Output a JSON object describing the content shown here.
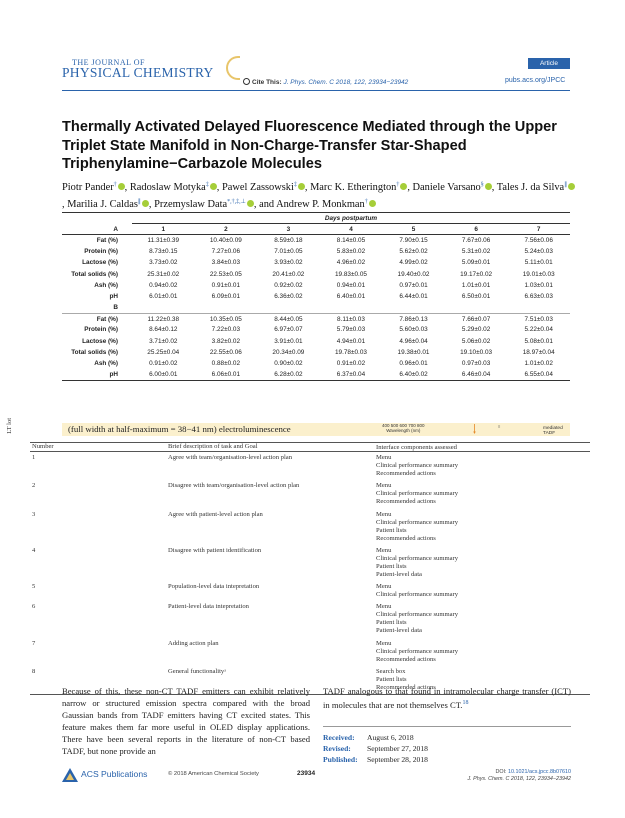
{
  "header": {
    "journal_line1": "THE JOURNAL OF",
    "journal_line2": "PHYSICAL CHEMISTRY",
    "cite_label": "Cite This:",
    "cite_ref": "J. Phys. Chem. C 2018, 122, 23934−23942",
    "article_tag": "Article",
    "pubs_link": "pubs.acs.org/JPCC"
  },
  "article": {
    "title": "Thermally Activated Delayed Fluorescence Mediated through the Upper Triplet State Manifold in Non-Charge-Transfer Star-Shaped Triphenylamine−Carbazole Molecules",
    "authors": [
      {
        "name": "Piotr Pander,",
        "sup": "†"
      },
      {
        "name": "Radoslaw Motyka,",
        "sup": "‡"
      },
      {
        "name": "Pawel Zassowski,",
        "sup": "‡"
      },
      {
        "name": "Marc K. Etherington,",
        "sup": "†"
      },
      {
        "name": "Daniele Varsano,",
        "sup": "§"
      },
      {
        "name": "Tales J. da Silva,",
        "sup": "∥"
      },
      {
        "name": "Marilia J. Caldas,",
        "sup": "∥"
      },
      {
        "name": "Przemyslaw Data,",
        "sup": "*,†,‡,⊥"
      },
      {
        "name": "and Andrew P. Monkman",
        "sup": "†"
      }
    ]
  },
  "data_table": {
    "span_label": "Days postpartum",
    "columns": [
      "A",
      "1",
      "2",
      "3",
      "4",
      "5",
      "6",
      "7"
    ],
    "group_b_label": "B",
    "group_a": [
      {
        "label": "Fat (%)",
        "values": [
          "11.31±0.39",
          "10.40±0.09",
          "8.59±0.18",
          "8.14±0.05",
          "7.90±0.15",
          "7.67±0.06",
          "7.56±0.06"
        ]
      },
      {
        "label": "Protein (%)",
        "values": [
          "8.73±0.15",
          "7.27±0.06",
          "7.01±0.05",
          "5.83±0.02",
          "5.62±0.02",
          "5.31±0.02",
          "5.24±0.03"
        ]
      },
      {
        "label": "Lactose (%)",
        "values": [
          "3.73±0.02",
          "3.84±0.03",
          "3.93±0.02",
          "4.96±0.02",
          "4.99±0.02",
          "5.09±0.01",
          "5.11±0.01"
        ]
      },
      {
        "label": "Total solids (%)",
        "values": [
          "25.31±0.02",
          "22.53±0.05",
          "20.41±0.02",
          "19.83±0.05",
          "19.40±0.02",
          "19.17±0.02",
          "19.01±0.03"
        ]
      },
      {
        "label": "Ash (%)",
        "values": [
          "0.94±0.02",
          "0.91±0.01",
          "0.92±0.02",
          "0.94±0.01",
          "0.97±0.01",
          "1.01±0.01",
          "1.03±0.01"
        ]
      },
      {
        "label": "pH",
        "values": [
          "6.01±0.01",
          "6.09±0.01",
          "6.36±0.02",
          "6.40±0.01",
          "6.44±0.01",
          "6.50±0.01",
          "6.63±0.03"
        ]
      }
    ],
    "group_b": [
      {
        "label": "Fat (%)",
        "values": [
          "11.22±0.38",
          "10.35±0.05",
          "8.44±0.05",
          "8.11±0.03",
          "7.86±0.13",
          "7.66±0.07",
          "7.51±0.03"
        ]
      },
      {
        "label": "Protein (%)",
        "values": [
          "8.64±0.12",
          "7.22±0.03",
          "6.97±0.07",
          "5.79±0.03",
          "5.60±0.03",
          "5.29±0.02",
          "5.22±0.04"
        ]
      },
      {
        "label": "Lactose (%)",
        "values": [
          "3.71±0.02",
          "3.82±0.02",
          "3.91±0.01",
          "4.94±0.01",
          "4.96±0.04",
          "5.06±0.02",
          "5.08±0.01"
        ]
      },
      {
        "label": "Total solids (%)",
        "values": [
          "25.25±0.04",
          "22.55±0.06",
          "20.34±0.09",
          "19.78±0.03",
          "19.38±0.01",
          "19.10±0.03",
          "18.97±0.04"
        ]
      },
      {
        "label": "Ash (%)",
        "values": [
          "0.91±0.02",
          "0.88±0.02",
          "0.90±0.02",
          "0.91±0.02",
          "0.96±0.01",
          "0.97±0.03",
          "1.01±0.02"
        ]
      },
      {
        "label": "pH",
        "values": [
          "6.00±0.01",
          "6.06±0.01",
          "6.28±0.02",
          "6.37±0.04",
          "6.40±0.02",
          "6.46±0.04",
          "6.55±0.04"
        ]
      }
    ]
  },
  "side_label": "LT lot",
  "fwhm_strip": {
    "text": "(full width at half-maximum = 38−41 nm) electroluminescence",
    "axis_ticks": "400  500  600  700  800",
    "axis_label": "Wavelength (nm)",
    "tadf_label": "mediated TADF"
  },
  "task_table": {
    "headers": [
      "Number",
      "Brief description of task and Goal",
      "Interface components assessed"
    ],
    "rows": [
      {
        "num": "1",
        "desc": "Agree with team/organisation-level action plan",
        "components": [
          "Menu",
          "Clinical performance summary",
          "Recommended actions"
        ]
      },
      {
        "num": "2",
        "desc": "Disagree with team/organisation-level action plan",
        "components": [
          "Menu",
          "Clinical performance summary",
          "Recommended actions"
        ]
      },
      {
        "num": "3",
        "desc": "Agree with patient-level action plan",
        "components": [
          "Menu",
          "Clinical performance summary",
          "Patient lists",
          "Recommended actions"
        ]
      },
      {
        "num": "4",
        "desc": "Disagree with patient identification",
        "components": [
          "Menu",
          "Clinical performance summary",
          "Patient lists",
          "Patient-level data"
        ]
      },
      {
        "num": "5",
        "desc": "Population-level data intepretation",
        "components": [
          "Menu",
          "Clinical performance summary"
        ]
      },
      {
        "num": "6",
        "desc": "Patient-level data intepretation",
        "components": [
          "Menu",
          "Clinical performance summary",
          "Patient lists",
          "Patient-level data"
        ]
      },
      {
        "num": "7",
        "desc": "Adding action plan",
        "components": [
          "Menu",
          "Clinical performance summary",
          "Recommended actions"
        ]
      },
      {
        "num": "8",
        "desc": "General functionalityᵃ",
        "components": [
          "Search box",
          "Patient lists",
          "Recommended actions"
        ]
      }
    ]
  },
  "body": {
    "left": "Because of this, these non-CT TADF emitters can exhibit relatively narrow or structured emission spectra compared with the broad Gaussian bands from TADF emitters having CT excited states. This feature makes them far more useful in OLED display applications. There have been several reports in the literature of non-CT based TADF, but none provide an",
    "right": "TADF analogous to that found in intramolecular charge transfer (ICT) in molecules that are not themselves CT.",
    "right_ref": "18"
  },
  "dates": [
    {
      "label": "Received:",
      "value": "August 6, 2018"
    },
    {
      "label": "Revised:",
      "value": "September 27, 2018"
    },
    {
      "label": "Published:",
      "value": "September 28, 2018"
    }
  ],
  "footer": {
    "publisher": "ACS Publications",
    "copyright": "© 2018 American Chemical Society",
    "page_number": "23934",
    "doi_label": "DOI:",
    "doi": "10.1021/acs.jpcc.8b07610",
    "journal_ref": "J. Phys. Chem. C 2018, 122, 23934−23942"
  },
  "colors": {
    "accent": "#2a63ab",
    "orcid": "#a6ce39",
    "highlight": "#fbf0cd"
  }
}
